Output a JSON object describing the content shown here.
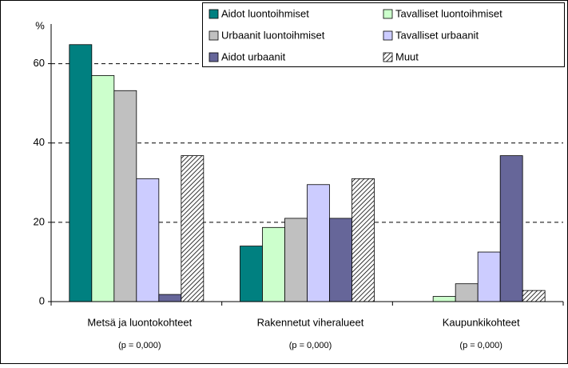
{
  "chart_data": {
    "type": "bar",
    "y_label": "%",
    "categories": [
      "Metsä ja luontokohteet",
      "Rakennetut viheralueet",
      "Kaupunkikohteet"
    ],
    "category_notes": [
      "(p = 0,000)",
      "(p = 0,000)",
      "(p = 0,000)"
    ],
    "series": [
      {
        "name": "Aidot luontoihmiset",
        "color": "#008080",
        "values": [
          64.8,
          14,
          null
        ]
      },
      {
        "name": "Tavalliset luontoihmiset",
        "color": "#ccffcc",
        "values": [
          57,
          18.7,
          1.3
        ]
      },
      {
        "name": "Urbaanit luontoihmiset",
        "color": "#c0c0c0",
        "values": [
          53.2,
          21,
          4.5
        ]
      },
      {
        "name": "Tavalliset urbaanit",
        "color": "#ccccff",
        "values": [
          31,
          29.5,
          12.5
        ]
      },
      {
        "name": "Aidot urbaanit",
        "color": "#666699",
        "values": [
          1.8,
          21,
          36.8
        ]
      },
      {
        "name": "Muut",
        "color": "#ffffff",
        "hatch": true,
        "values": [
          36.8,
          31,
          2.8
        ]
      }
    ],
    "ylim": [
      0,
      70
    ],
    "yticks": [
      0,
      20,
      40,
      60
    ],
    "grid": true,
    "legend": "top-right"
  }
}
